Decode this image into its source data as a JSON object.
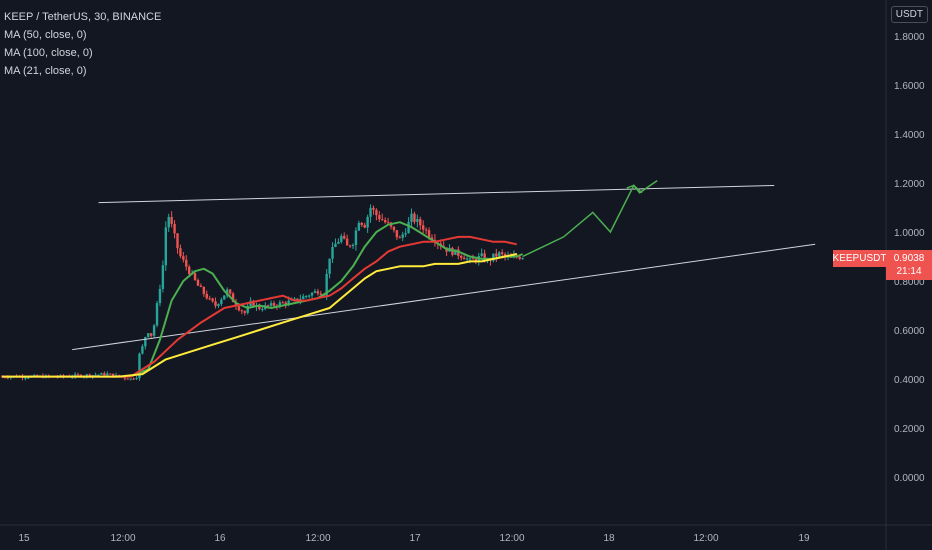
{
  "legend": {
    "title": "KEEP / TetherUS, 30, BINANCE",
    "ma1": "MA (50, close, 0)",
    "ma2": "MA (100, close, 0)",
    "ma3": "MA (21, close, 0)"
  },
  "axis": {
    "unit": "USDT"
  },
  "price_tag": {
    "symbol": "KEEPUSDT",
    "price": "0.9038",
    "timer": "21:14"
  },
  "colors": {
    "background": "#131722",
    "up": "#26a69a",
    "down": "#ef5350",
    "ma50": "#e53935",
    "ma100": "#ffeb3b",
    "ma21": "#4caf50",
    "trendline": "#d1d4dc",
    "projection": "#4caf50"
  },
  "chart_data": {
    "type": "candlestick",
    "title": "KEEP / TetherUS, 30, BINANCE",
    "y_ticks": [
      "1.8000",
      "1.6000",
      "1.4000",
      "1.2000",
      "1.0000",
      "0.8000",
      "0.6000",
      "0.4000",
      "0.2000",
      "0.0000"
    ],
    "x_ticks": [
      "15",
      "12:00",
      "16",
      "12:00",
      "17",
      "12:00",
      "18",
      "12:00",
      "19"
    ],
    "ylim": [
      -0.15,
      1.95
    ],
    "grid": false,
    "close_path": [
      [
        0,
        0.41
      ],
      [
        10,
        0.41
      ],
      [
        18,
        0.42
      ],
      [
        22,
        0.4
      ],
      [
        23,
        0.41
      ],
      [
        23.5,
        0.5
      ],
      [
        24,
        0.53
      ],
      [
        24.8,
        0.6
      ],
      [
        25.5,
        0.58
      ],
      [
        26,
        0.62
      ],
      [
        26.8,
        0.75
      ],
      [
        27.4,
        0.83
      ],
      [
        27.9,
        1.0
      ],
      [
        28.3,
        1.08
      ],
      [
        28.8,
        1.04
      ],
      [
        29.3,
        1.0
      ],
      [
        29.8,
        0.95
      ],
      [
        30.5,
        0.9
      ],
      [
        31.5,
        0.86
      ],
      [
        32.5,
        0.82
      ],
      [
        33.5,
        0.78
      ],
      [
        34.5,
        0.75
      ],
      [
        35.5,
        0.72
      ],
      [
        36.5,
        0.7
      ],
      [
        37.5,
        0.73
      ],
      [
        38.5,
        0.76
      ],
      [
        39.5,
        0.72
      ],
      [
        40.5,
        0.69
      ],
      [
        41.5,
        0.67
      ],
      [
        42.5,
        0.71
      ],
      [
        44,
        0.69
      ],
      [
        46,
        0.7
      ],
      [
        48,
        0.71
      ],
      [
        50,
        0.72
      ],
      [
        52,
        0.74
      ],
      [
        54,
        0.76
      ],
      [
        55,
        0.75
      ],
      [
        56,
        0.9
      ],
      [
        57,
        0.95
      ],
      [
        58,
        0.98
      ],
      [
        59,
        0.94
      ],
      [
        60,
        0.96
      ],
      [
        61,
        1.05
      ],
      [
        62,
        1.03
      ],
      [
        63,
        1.1
      ],
      [
        64,
        1.07
      ],
      [
        65,
        1.05
      ],
      [
        66,
        1.03
      ],
      [
        67,
        1.0
      ],
      [
        68,
        0.97
      ],
      [
        69,
        1.01
      ],
      [
        70,
        1.06
      ],
      [
        71,
        1.04
      ],
      [
        72,
        1.02
      ],
      [
        73,
        0.99
      ],
      [
        74,
        0.97
      ],
      [
        75,
        0.95
      ],
      [
        76,
        0.93
      ],
      [
        77,
        0.92
      ],
      [
        78,
        0.91
      ],
      [
        79,
        0.9
      ],
      [
        80,
        0.88
      ],
      [
        81,
        0.89
      ],
      [
        82,
        0.9
      ],
      [
        83,
        0.88
      ],
      [
        84,
        0.9
      ],
      [
        85,
        0.91
      ],
      [
        86,
        0.9
      ],
      [
        87,
        0.89
      ],
      [
        88,
        0.9
      ],
      [
        89,
        0.9
      ]
    ],
    "series": [
      {
        "name": "MA (21, close, 0)",
        "values": [
          [
            22,
            0.41
          ],
          [
            25,
            0.44
          ],
          [
            27,
            0.56
          ],
          [
            29,
            0.72
          ],
          [
            31,
            0.8
          ],
          [
            33,
            0.84
          ],
          [
            34.5,
            0.85
          ],
          [
            36,
            0.83
          ],
          [
            38,
            0.76
          ],
          [
            40,
            0.71
          ],
          [
            42,
            0.69
          ],
          [
            44,
            0.7
          ],
          [
            46,
            0.69
          ],
          [
            48,
            0.7
          ],
          [
            50,
            0.71
          ],
          [
            52,
            0.72
          ],
          [
            54,
            0.73
          ],
          [
            56,
            0.76
          ],
          [
            58,
            0.8
          ],
          [
            60,
            0.86
          ],
          [
            62,
            0.94
          ],
          [
            64,
            1.0
          ],
          [
            66,
            1.03
          ],
          [
            68,
            1.04
          ],
          [
            70,
            1.02
          ],
          [
            72,
            0.99
          ],
          [
            74,
            0.96
          ],
          [
            76,
            0.93
          ],
          [
            78,
            0.92
          ],
          [
            80,
            0.9
          ],
          [
            82,
            0.89
          ],
          [
            84,
            0.89
          ],
          [
            86,
            0.9
          ],
          [
            88,
            0.9
          ],
          [
            89,
            0.91
          ]
        ]
      },
      {
        "name": "MA (50, close, 0)",
        "values": [
          [
            0,
            0.41
          ],
          [
            22,
            0.41
          ],
          [
            26,
            0.47
          ],
          [
            30,
            0.56
          ],
          [
            34,
            0.63
          ],
          [
            38,
            0.69
          ],
          [
            42,
            0.71
          ],
          [
            46,
            0.73
          ],
          [
            48,
            0.74
          ],
          [
            50,
            0.72
          ],
          [
            52,
            0.72
          ],
          [
            54,
            0.73
          ],
          [
            56,
            0.74
          ],
          [
            58,
            0.77
          ],
          [
            60,
            0.81
          ],
          [
            62,
            0.85
          ],
          [
            64,
            0.88
          ],
          [
            66,
            0.92
          ],
          [
            68,
            0.94
          ],
          [
            70,
            0.95
          ],
          [
            72,
            0.96
          ],
          [
            74,
            0.96
          ],
          [
            76,
            0.97
          ],
          [
            78,
            0.98
          ],
          [
            80,
            0.98
          ],
          [
            82,
            0.97
          ],
          [
            84,
            0.96
          ],
          [
            86,
            0.96
          ],
          [
            88,
            0.95
          ]
        ]
      },
      {
        "name": "MA (100, close, 0)",
        "values": [
          [
            0,
            0.41
          ],
          [
            20,
            0.41
          ],
          [
            24,
            0.42
          ],
          [
            28,
            0.48
          ],
          [
            32,
            0.51
          ],
          [
            36,
            0.54
          ],
          [
            40,
            0.57
          ],
          [
            44,
            0.6
          ],
          [
            48,
            0.63
          ],
          [
            52,
            0.66
          ],
          [
            56,
            0.69
          ],
          [
            58,
            0.73
          ],
          [
            60,
            0.77
          ],
          [
            62,
            0.81
          ],
          [
            64,
            0.84
          ],
          [
            66,
            0.85
          ],
          [
            68,
            0.86
          ],
          [
            70,
            0.86
          ],
          [
            72,
            0.86
          ],
          [
            74,
            0.87
          ],
          [
            76,
            0.87
          ],
          [
            78,
            0.87
          ],
          [
            80,
            0.88
          ],
          [
            82,
            0.88
          ],
          [
            84,
            0.89
          ],
          [
            86,
            0.9
          ],
          [
            88,
            0.91
          ]
        ]
      }
    ],
    "trendlines": [
      {
        "from": [
          16.5,
          1.12
        ],
        "to": [
          132,
          1.19
        ]
      },
      {
        "from": [
          12,
          0.52
        ],
        "to": [
          139,
          0.95
        ]
      }
    ],
    "projection": [
      [
        89,
        0.9
      ],
      [
        96,
        0.98
      ],
      [
        101,
        1.08
      ],
      [
        104,
        1.0
      ],
      [
        108,
        1.19
      ],
      [
        109,
        1.16
      ],
      [
        112,
        1.21
      ],
      [
        115,
        1.2
      ],
      [
        116,
        1.2
      ]
    ]
  }
}
